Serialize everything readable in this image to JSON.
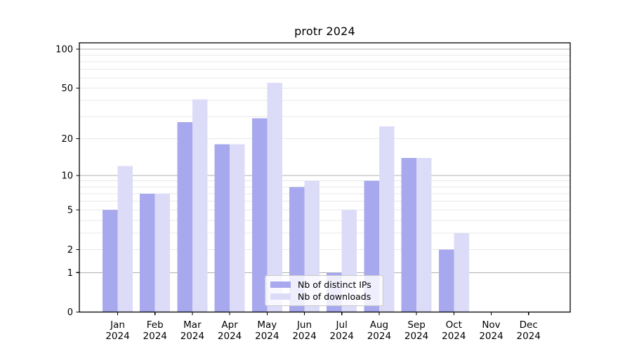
{
  "title": "protr 2024",
  "chart_data": {
    "type": "bar",
    "title": "protr 2024",
    "categories": [
      "Jan 2024",
      "Feb 2024",
      "Mar 2024",
      "Apr 2024",
      "May 2024",
      "Jun 2024",
      "Jul 2024",
      "Aug 2024",
      "Sep 2024",
      "Oct 2024",
      "Nov 2024",
      "Dec 2024"
    ],
    "months": [
      "Jan",
      "Feb",
      "Mar",
      "Apr",
      "May",
      "Jun",
      "Jul",
      "Aug",
      "Sep",
      "Oct",
      "Nov",
      "Dec"
    ],
    "year": "2024",
    "series": [
      {
        "name": "Nb of distinct IPs",
        "color": "#a8a8ee",
        "values": [
          5,
          7,
          27,
          18,
          29,
          8,
          1,
          9,
          14,
          2,
          0,
          0
        ]
      },
      {
        "name": "Nb of downloads",
        "color": "#dcdcf8",
        "values": [
          12,
          7,
          41,
          18,
          55,
          9,
          5,
          25,
          14,
          3,
          0,
          0
        ]
      }
    ],
    "xlabel": "",
    "ylabel": "",
    "y_scale": "log10(1+value)",
    "y_ticks": [
      0,
      1,
      2,
      5,
      10,
      20,
      50,
      100
    ],
    "ylim": [
      0,
      112
    ],
    "grid_major_values": [
      1,
      10,
      100
    ],
    "grid_minor_values": [
      2,
      3,
      4,
      5,
      6,
      7,
      8,
      9,
      20,
      30,
      40,
      50,
      60,
      70,
      80,
      90
    ],
    "legend_position": "bottom-center"
  },
  "colors": {
    "bar_distinct_ips": "#a8a8ee",
    "bar_downloads": "#dcdcf8",
    "grid_major": "#b0b0b0",
    "grid_minor": "#e8e8e8",
    "axis": "#000000",
    "text": "#000000",
    "legend_border": "#c8c8c8"
  }
}
